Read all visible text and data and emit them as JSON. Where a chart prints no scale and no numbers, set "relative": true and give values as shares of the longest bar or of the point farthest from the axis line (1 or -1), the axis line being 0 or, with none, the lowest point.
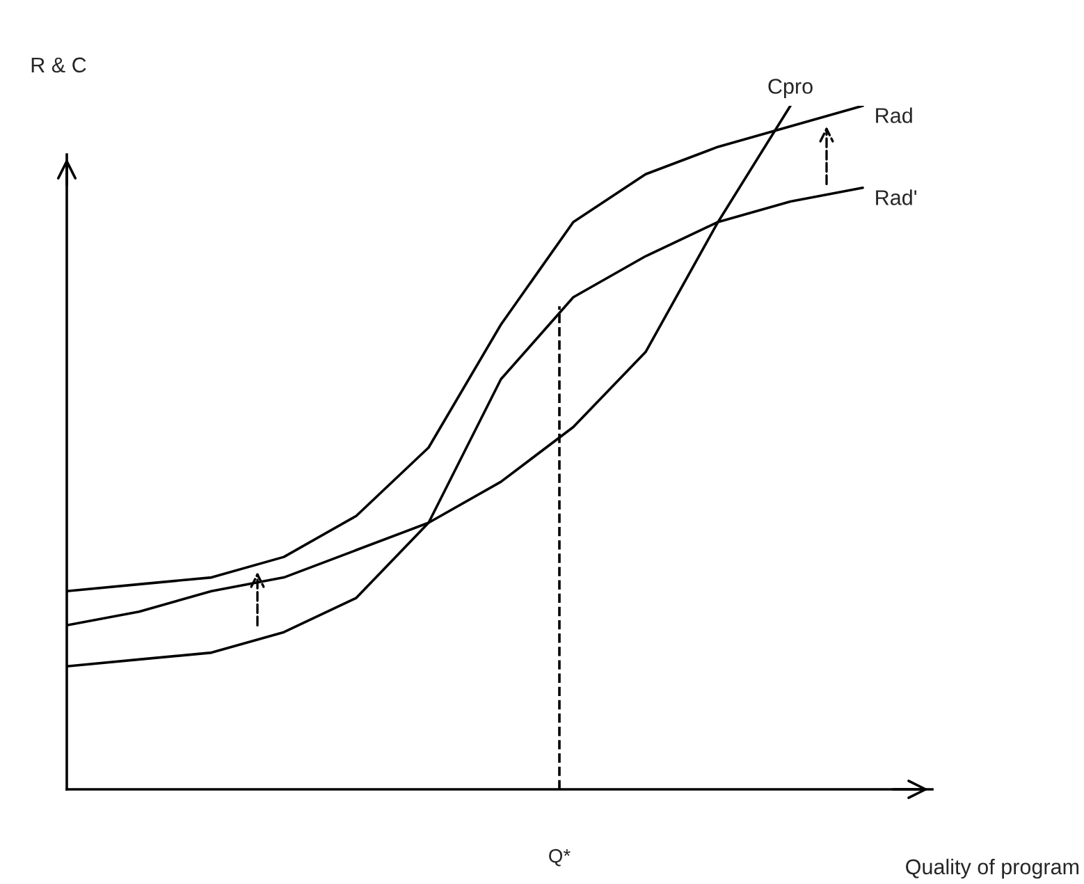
{
  "chart_data": {
    "type": "line",
    "relative": true,
    "ylabel": "R & C",
    "xlabel": "Quality of program",
    "categories": [
      null,
      null,
      null,
      null,
      null,
      null,
      null,
      null,
      null,
      null,
      null,
      null
    ],
    "series": [
      {
        "name": "Rad",
        "color": "#000000",
        "values": [
          0.29,
          0.3,
          0.31,
          0.34,
          0.4,
          0.5,
          0.68,
          0.83,
          0.9,
          0.94,
          0.97,
          1.0
        ]
      },
      {
        "name": "Rad'",
        "color": "#000000",
        "values": [
          0.24,
          0.26,
          0.29,
          0.31,
          0.35,
          0.39,
          0.6,
          0.72,
          0.78,
          0.83,
          0.86,
          0.88
        ]
      },
      {
        "name": "Cpro",
        "color": "#000000",
        "values": [
          0.18,
          0.19,
          0.2,
          0.23,
          0.28,
          0.39,
          0.45,
          0.53,
          0.64,
          0.83,
          1.0,
          null
        ]
      }
    ],
    "annotations": [
      "Q*"
    ],
    "legend": false,
    "marker": "none",
    "line_style": "solid"
  }
}
